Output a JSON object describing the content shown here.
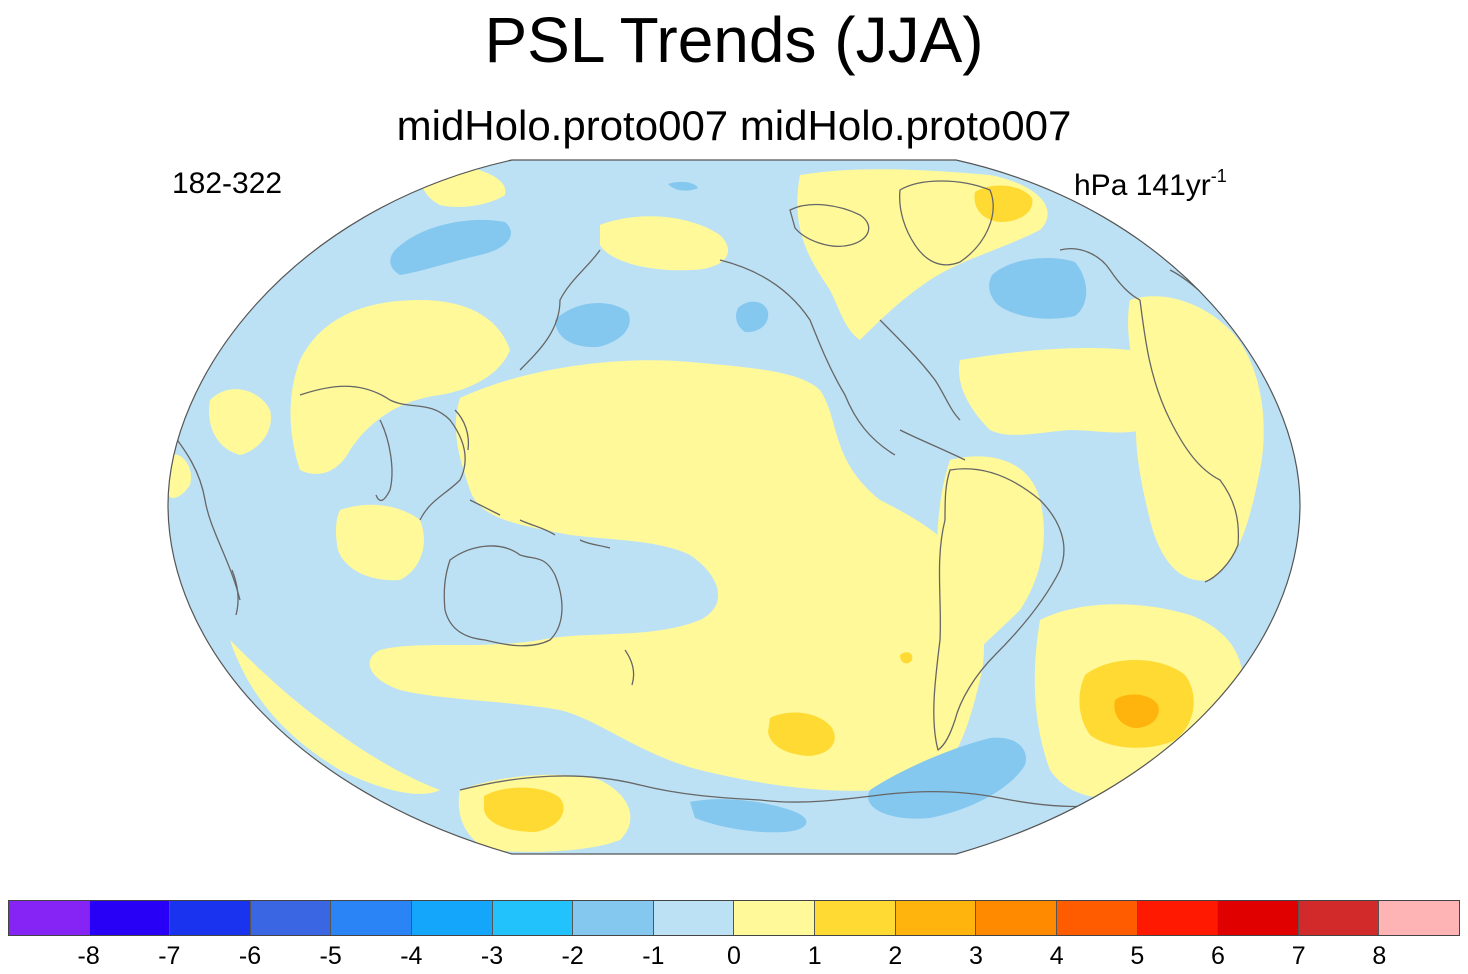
{
  "title": "PSL Trends (JJA)",
  "subtitle": "midHolo.proto007  midHolo.proto007",
  "left_label": "182-322",
  "units": {
    "base": "hPa 141yr",
    "exponent": "-1"
  },
  "colorbar": {
    "colors": [
      "#8624f5",
      "#2800f5",
      "#1a33ee",
      "#3a66e3",
      "#2b84f5",
      "#13a6fb",
      "#22c3fc",
      "#85c8ef",
      "#bde1f4",
      "#fff99a",
      "#ffda33",
      "#ffb30d",
      "#ff8a00",
      "#ff5c00",
      "#ff1900",
      "#e10000",
      "#d22a2a",
      "#feb4b4"
    ],
    "labels": [
      "-8",
      "-7",
      "-6",
      "-5",
      "-4",
      "-3",
      "-2",
      "-1",
      "0",
      "1",
      "2",
      "3",
      "4",
      "5",
      "6",
      "7",
      "8"
    ]
  },
  "map": {
    "projection": "Robinson",
    "center_longitude": -160,
    "background_color": "#bde1f4",
    "coastline_color": "#666666"
  }
}
